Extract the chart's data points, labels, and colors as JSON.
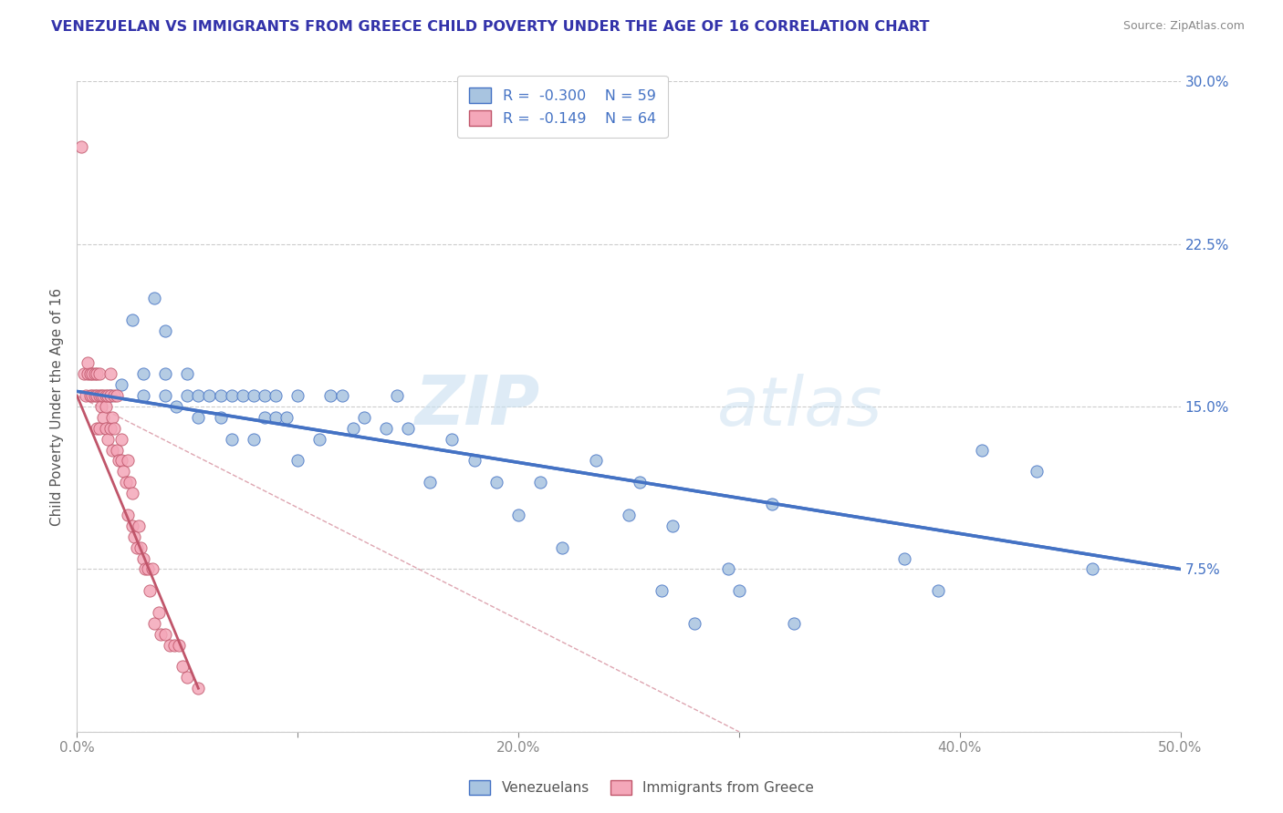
{
  "title": "VENEZUELAN VS IMMIGRANTS FROM GREECE CHILD POVERTY UNDER THE AGE OF 16 CORRELATION CHART",
  "source": "Source: ZipAtlas.com",
  "ylabel": "Child Poverty Under the Age of 16",
  "xlim": [
    0.0,
    0.5
  ],
  "ylim": [
    0.0,
    0.3
  ],
  "yticks": [
    0.0,
    0.075,
    0.15,
    0.225,
    0.3
  ],
  "ytick_labels": [
    "",
    "7.5%",
    "15.0%",
    "22.5%",
    "30.0%"
  ],
  "xticks": [
    0.0,
    0.1,
    0.2,
    0.3,
    0.4,
    0.5
  ],
  "xtick_labels": [
    "0.0%",
    "",
    "20.0%",
    "",
    "40.0%",
    "50.0%"
  ],
  "venezuelans_color": "#a8c4e0",
  "greece_color": "#f4a7b9",
  "trend_venezuelans_color": "#4472c4",
  "trend_greece_color": "#c0556a",
  "diagonal_color": "#d08090",
  "R_venezuelans": -0.3,
  "N_venezuelans": 59,
  "R_greece": -0.149,
  "N_greece": 64,
  "legend_labels": [
    "Venezuelans",
    "Immigrants from Greece"
  ],
  "watermark_zip": "ZIP",
  "watermark_atlas": "atlas",
  "venezuelans_x": [
    0.015,
    0.02,
    0.025,
    0.03,
    0.03,
    0.035,
    0.04,
    0.04,
    0.04,
    0.045,
    0.05,
    0.05,
    0.055,
    0.055,
    0.06,
    0.065,
    0.065,
    0.07,
    0.07,
    0.075,
    0.08,
    0.08,
    0.085,
    0.085,
    0.09,
    0.09,
    0.095,
    0.1,
    0.1,
    0.11,
    0.115,
    0.12,
    0.125,
    0.13,
    0.14,
    0.145,
    0.15,
    0.16,
    0.17,
    0.18,
    0.19,
    0.2,
    0.21,
    0.22,
    0.235,
    0.25,
    0.255,
    0.265,
    0.27,
    0.28,
    0.295,
    0.3,
    0.315,
    0.325,
    0.375,
    0.39,
    0.41,
    0.435,
    0.46
  ],
  "venezuelans_y": [
    0.155,
    0.16,
    0.19,
    0.155,
    0.165,
    0.2,
    0.155,
    0.165,
    0.185,
    0.15,
    0.155,
    0.165,
    0.145,
    0.155,
    0.155,
    0.145,
    0.155,
    0.135,
    0.155,
    0.155,
    0.135,
    0.155,
    0.145,
    0.155,
    0.145,
    0.155,
    0.145,
    0.125,
    0.155,
    0.135,
    0.155,
    0.155,
    0.14,
    0.145,
    0.14,
    0.155,
    0.14,
    0.115,
    0.135,
    0.125,
    0.115,
    0.1,
    0.115,
    0.085,
    0.125,
    0.1,
    0.115,
    0.065,
    0.095,
    0.05,
    0.075,
    0.065,
    0.105,
    0.05,
    0.08,
    0.065,
    0.13,
    0.12,
    0.075
  ],
  "greece_x": [
    0.002,
    0.003,
    0.004,
    0.005,
    0.005,
    0.006,
    0.006,
    0.007,
    0.007,
    0.008,
    0.008,
    0.009,
    0.009,
    0.009,
    0.01,
    0.01,
    0.01,
    0.011,
    0.011,
    0.012,
    0.012,
    0.013,
    0.013,
    0.013,
    0.014,
    0.014,
    0.015,
    0.015,
    0.015,
    0.016,
    0.016,
    0.017,
    0.017,
    0.018,
    0.018,
    0.019,
    0.02,
    0.02,
    0.021,
    0.022,
    0.023,
    0.023,
    0.024,
    0.025,
    0.025,
    0.026,
    0.027,
    0.028,
    0.029,
    0.03,
    0.031,
    0.032,
    0.033,
    0.034,
    0.035,
    0.037,
    0.038,
    0.04,
    0.042,
    0.044,
    0.046,
    0.048,
    0.05,
    0.055
  ],
  "greece_y": [
    0.27,
    0.165,
    0.155,
    0.165,
    0.17,
    0.155,
    0.165,
    0.155,
    0.165,
    0.155,
    0.165,
    0.14,
    0.155,
    0.165,
    0.155,
    0.14,
    0.165,
    0.15,
    0.155,
    0.145,
    0.155,
    0.14,
    0.15,
    0.155,
    0.135,
    0.155,
    0.14,
    0.155,
    0.165,
    0.13,
    0.145,
    0.14,
    0.155,
    0.13,
    0.155,
    0.125,
    0.125,
    0.135,
    0.12,
    0.115,
    0.1,
    0.125,
    0.115,
    0.095,
    0.11,
    0.09,
    0.085,
    0.095,
    0.085,
    0.08,
    0.075,
    0.075,
    0.065,
    0.075,
    0.05,
    0.055,
    0.045,
    0.045,
    0.04,
    0.04,
    0.04,
    0.03,
    0.025,
    0.02
  ],
  "trend_v_x0": 0.0,
  "trend_v_x1": 0.5,
  "trend_v_y0": 0.157,
  "trend_v_y1": 0.075,
  "trend_g_x0": 0.0,
  "trend_g_x1": 0.055,
  "trend_g_y0": 0.155,
  "trend_g_y1": 0.02
}
